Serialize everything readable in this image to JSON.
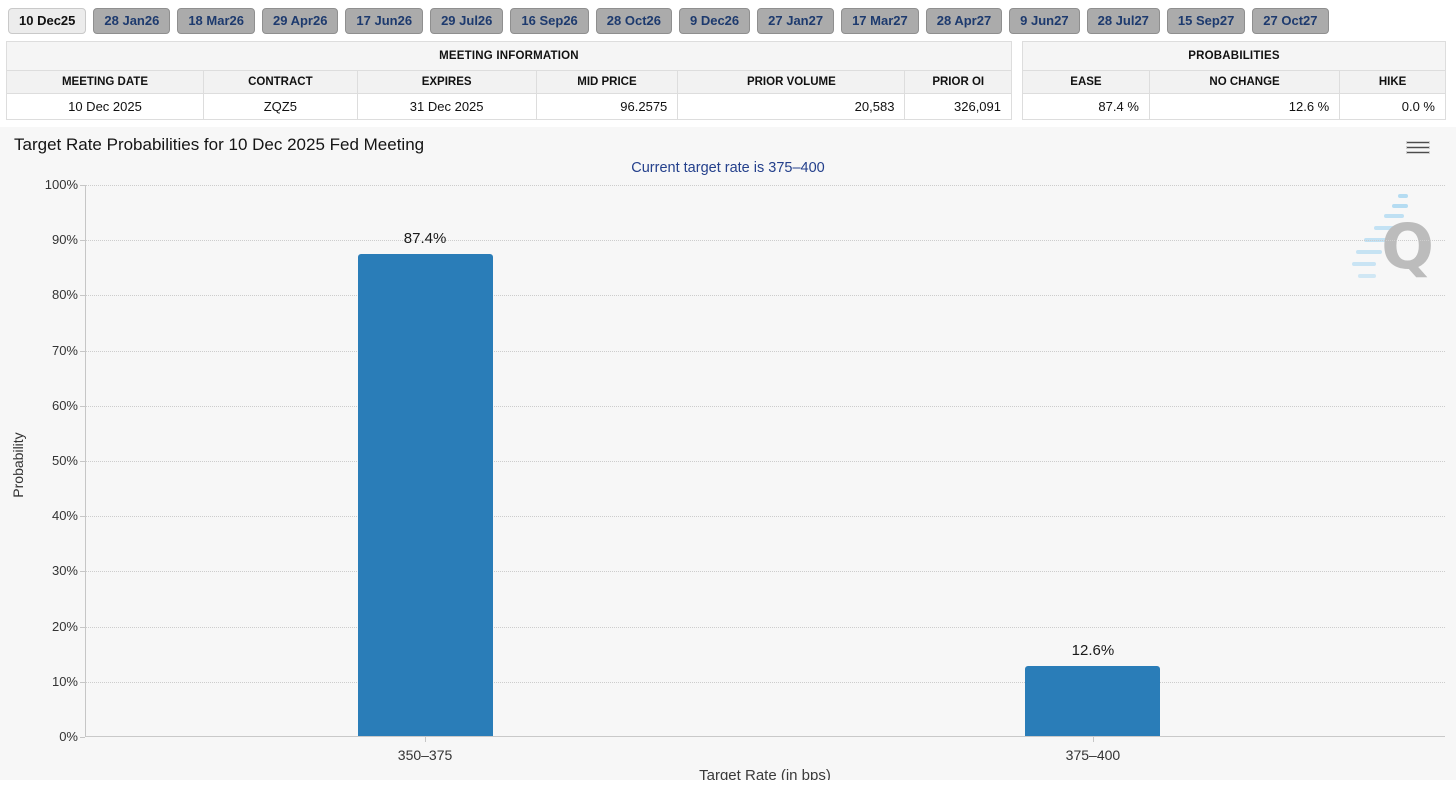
{
  "meeting_tabs": {
    "selected_index": 0,
    "labels": [
      "10 Dec25",
      "28 Jan26",
      "18 Mar26",
      "29 Apr26",
      "17 Jun26",
      "29 Jul26",
      "16 Sep26",
      "28 Oct26",
      "9 Dec26",
      "27 Jan27",
      "17 Mar27",
      "28 Apr27",
      "9 Jun27",
      "28 Jul27",
      "15 Sep27",
      "27 Oct27"
    ]
  },
  "meeting_info": {
    "title": "MEETING INFORMATION",
    "columns": [
      "MEETING DATE",
      "CONTRACT",
      "EXPIRES",
      "MID PRICE",
      "PRIOR VOLUME",
      "PRIOR OI"
    ],
    "values": [
      "10 Dec 2025",
      "ZQZ5",
      "31 Dec 2025",
      "96.2575",
      "20,583",
      "326,091"
    ]
  },
  "probabilities": {
    "title": "PROBABILITIES",
    "columns": [
      "EASE",
      "NO CHANGE",
      "HIKE"
    ],
    "values": [
      "87.4 %",
      "12.6 %",
      "0.0 %"
    ]
  },
  "chart_data": {
    "type": "bar",
    "title": "Target Rate Probabilities for 10 Dec 2025 Fed Meeting",
    "subtitle": "Current target rate is 375–400",
    "categories": [
      "350–375",
      "375–400"
    ],
    "values": [
      87.4,
      12.6
    ],
    "value_labels": [
      "87.4%",
      "12.6%"
    ],
    "xlabel": "Target Rate (in bps)",
    "ylabel": "Probability",
    "ylim": [
      0,
      100
    ],
    "ytick_step": 10,
    "ytick_suffix": "%",
    "grid": "dotted-horizontal",
    "legend": "none",
    "bar_color": "#2a7db8",
    "menu_icon": "hamburger-menu-icon",
    "watermark": "quikstrike-q-logo"
  }
}
